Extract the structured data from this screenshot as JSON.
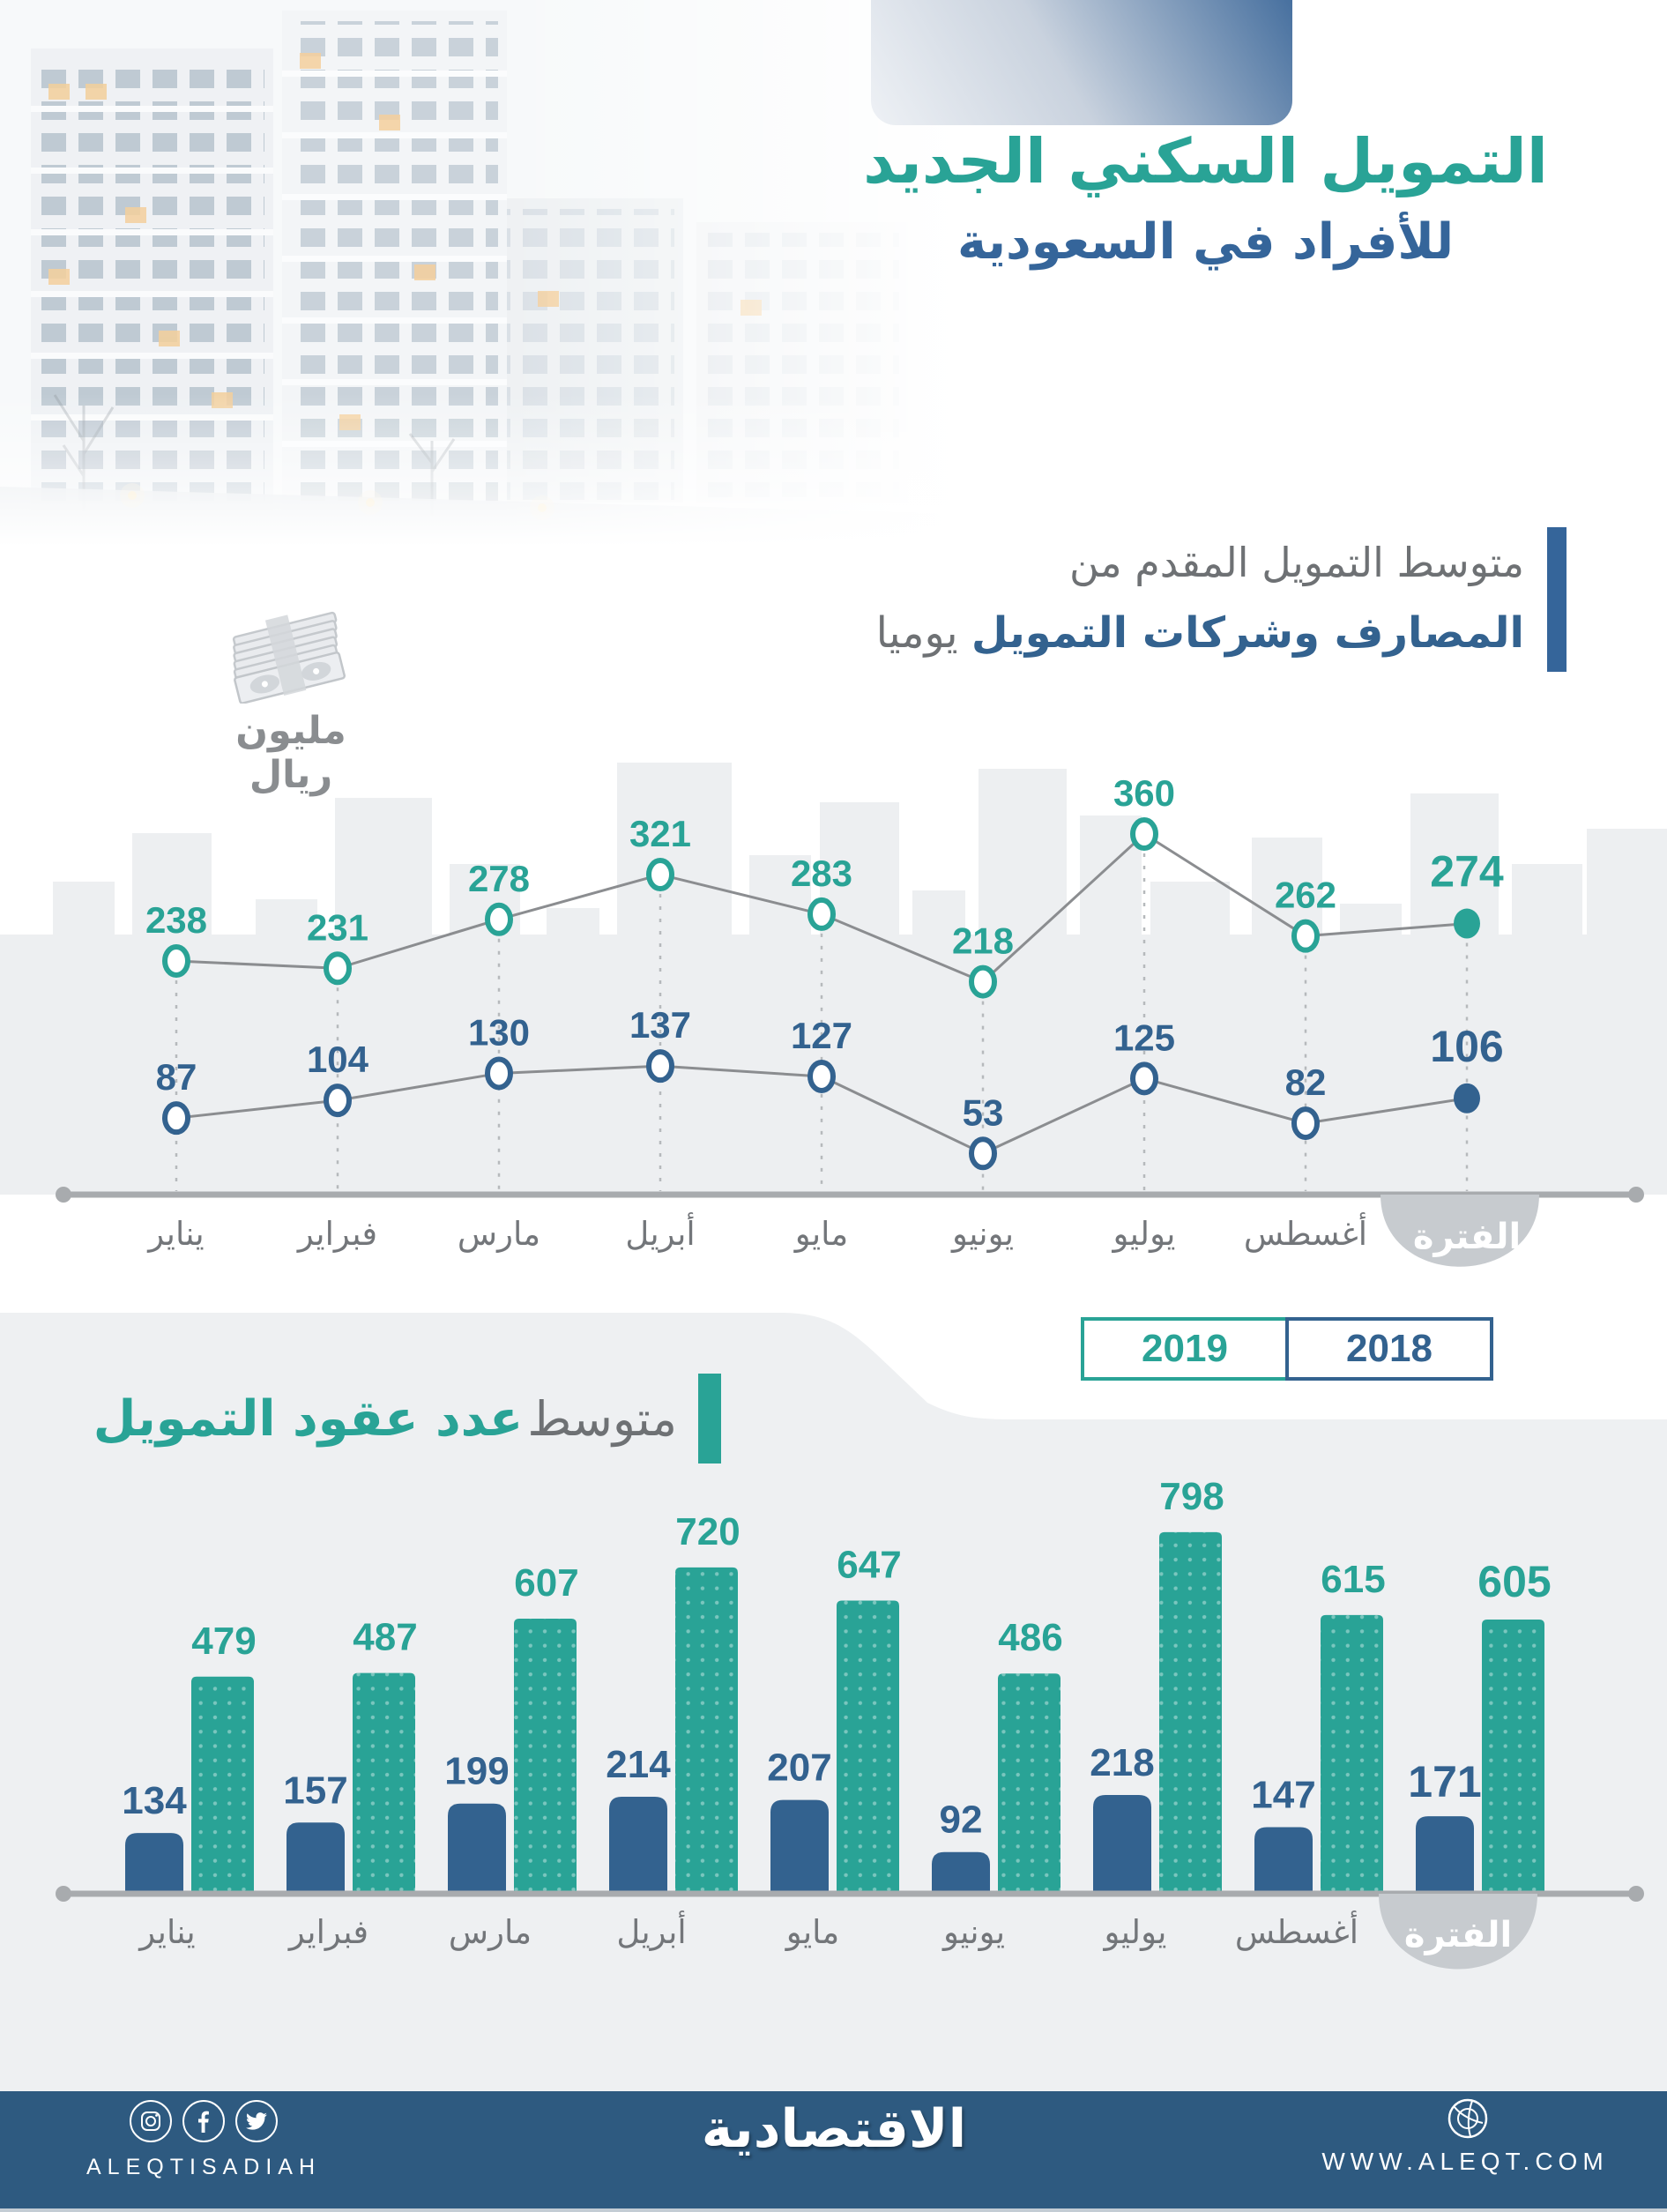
{
  "title": {
    "line1": "التمويل السكني الجديد",
    "line2": "للأفراد في السعودية"
  },
  "section1": {
    "heading_gray": "متوسط التمويل المقدم من",
    "heading_blue": "المصارف وشركات التمويل",
    "heading_suffix": "يوميا",
    "unit_label": "مليون ريال"
  },
  "section2": {
    "heading_gray": "متوسط",
    "heading_teal": "عدد عقود التمويل"
  },
  "legend": {
    "items": [
      {
        "label": "2019",
        "color": "#29a396"
      },
      {
        "label": "2018",
        "color": "#33628f"
      }
    ]
  },
  "footer": {
    "handle": "ALEQTISADIAH",
    "logo": "الاقتصادية",
    "url": "WWW.ALEQT.COM"
  },
  "colors": {
    "teal": "#29a396",
    "blue": "#33628f",
    "gray_text": "#73767a",
    "axis": "#a8abae",
    "line": "#8b8d90",
    "band": "#edeff1",
    "capsule": "#c7cbcf",
    "footer_bg": "#2e5a80"
  },
  "chart_data": [
    {
      "type": "line",
      "title": "متوسط التمويل المقدم من المصارف وشركات التمويل يوميا",
      "unit": "مليون ريال",
      "categories": [
        "يناير",
        "فبراير",
        "مارس",
        "أبريل",
        "مايو",
        "يونيو",
        "يوليو",
        "أغسطس",
        "الفترة"
      ],
      "series": [
        {
          "name": "2019",
          "color": "#29a396",
          "values": [
            238,
            231,
            278,
            321,
            283,
            218,
            360,
            262,
            274
          ]
        },
        {
          "name": "2018",
          "color": "#33628f",
          "values": [
            87,
            104,
            130,
            137,
            127,
            53,
            125,
            82,
            106
          ]
        }
      ],
      "grid": false,
      "legend_position": "below-right"
    },
    {
      "type": "bar",
      "title": "متوسط عدد عقود التمويل",
      "categories": [
        "يناير",
        "فبراير",
        "مارس",
        "أبريل",
        "مايو",
        "يونيو",
        "يوليو",
        "أغسطس",
        "الفترة"
      ],
      "series": [
        {
          "name": "2018",
          "color": "#33628f",
          "values": [
            134,
            157,
            199,
            214,
            207,
            92,
            218,
            147,
            171
          ]
        },
        {
          "name": "2019",
          "color": "#29a396",
          "values": [
            479,
            487,
            607,
            720,
            647,
            486,
            798,
            615,
            605
          ]
        }
      ],
      "grid": false,
      "ylim": [
        0,
        850
      ]
    }
  ]
}
